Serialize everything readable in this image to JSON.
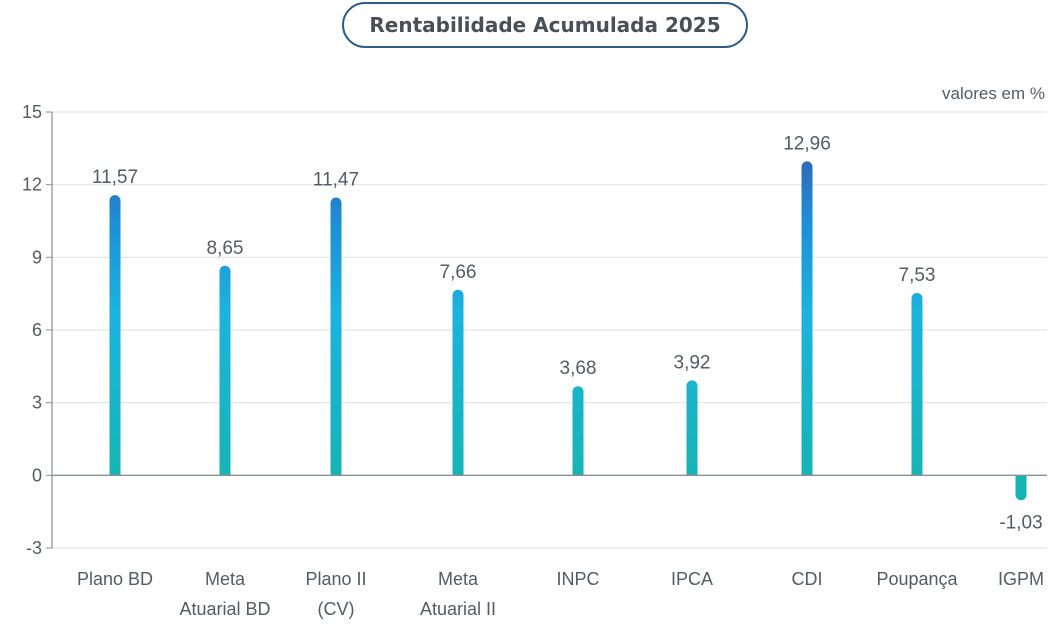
{
  "chart_data": {
    "type": "bar",
    "title": "Rentabilidade Acumulada 2025",
    "unit_note": "valores em %",
    "categories": [
      [
        "Plano BD"
      ],
      [
        "Meta",
        "Atuarial BD"
      ],
      [
        "Plano II",
        "(CV)"
      ],
      [
        "Meta",
        "Atuarial II"
      ],
      [
        "INPC"
      ],
      [
        "IPCA"
      ],
      [
        "CDI"
      ],
      [
        "Poupança"
      ],
      [
        "IGPM"
      ]
    ],
    "values": [
      11.57,
      8.65,
      11.47,
      7.66,
      3.68,
      3.92,
      12.96,
      7.53,
      -1.03
    ],
    "value_labels": [
      "11,57",
      "8,65",
      "11,47",
      "7,66",
      "3,68",
      "3,92",
      "12,96",
      "7,53",
      "-1,03"
    ],
    "ylim": [
      -3,
      15
    ],
    "yticks": [
      -3,
      0,
      3,
      6,
      9,
      12,
      15
    ],
    "grid": true,
    "colors": {
      "bar_bottom": "#17b4b4",
      "bar_mid": "#1aa3e0",
      "bar_top": "#3a5aa8",
      "grid": "#e3e3e3",
      "axis": "#8a8f96",
      "title_border": "#2f5c86"
    }
  }
}
